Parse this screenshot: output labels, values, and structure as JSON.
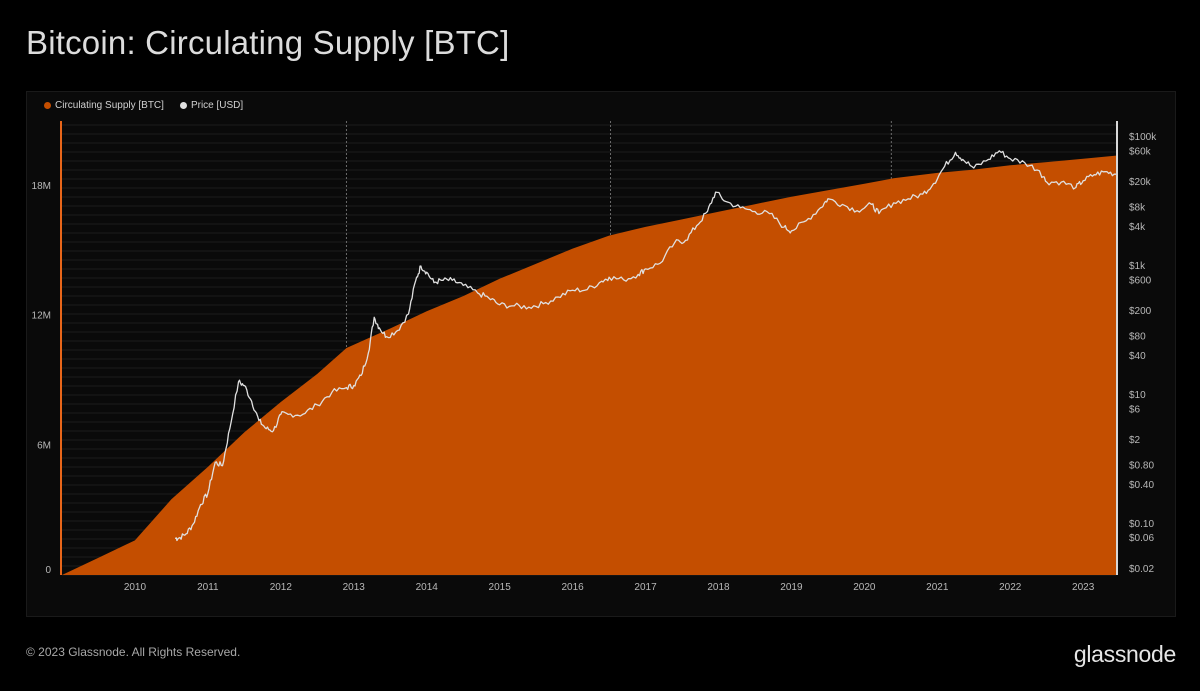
{
  "header": {
    "title": "Bitcoin: Circulating Supply [BTC]"
  },
  "footer": {
    "copyright": "© 2023 Glassnode. All Rights Reserved.",
    "logo_text": "glassnode"
  },
  "colors": {
    "supply": "#c44e00",
    "price": "#e0e0e0",
    "accent_line": "#e8661a",
    "grid": "#1c1c1c"
  },
  "chart_data": {
    "type": "area",
    "title": "Bitcoin: Circulating Supply [BTC]",
    "legend": {
      "placement": "top-left",
      "items": [
        {
          "label": "Circulating Supply [BTC]",
          "color": "#c44e00"
        },
        {
          "label": "Price [USD]",
          "color": "#e0e0e0"
        }
      ]
    },
    "x_ticks": [
      "2010",
      "2011",
      "2012",
      "2013",
      "2014",
      "2015",
      "2016",
      "2017",
      "2018",
      "2019",
      "2020",
      "2021",
      "2022",
      "2023"
    ],
    "xlim": [
      2009.0,
      2023.45
    ],
    "y_left": {
      "ticks": [
        0,
        6000000,
        12000000,
        18000000
      ],
      "tick_labels": [
        "0",
        "6M",
        "12M",
        "18M"
      ],
      "ylim": [
        0,
        21000000
      ]
    },
    "y_right": {
      "scale": "log",
      "ticks": [
        100000,
        60000,
        20000,
        8000,
        4000,
        1000,
        600,
        200,
        80,
        40,
        10,
        6,
        2,
        0.8,
        0.4,
        0.1,
        0.06,
        0.02
      ],
      "tick_labels": [
        "$100k",
        "$60k",
        "$20k",
        "$8k",
        "$4k",
        "$1k",
        "$600",
        "$200",
        "$80",
        "$40",
        "$10",
        "$6",
        "$2",
        "$0.80",
        "$0.40",
        "$0.10",
        "$0.06",
        "$0.02"
      ]
    },
    "halvings": [
      2012.9,
      2016.52,
      2020.37
    ],
    "series": [
      {
        "name": "Circulating Supply [BTC]",
        "axis": "left",
        "type": "area",
        "x": [
          2009.0,
          2009.5,
          2010.0,
          2010.5,
          2011.0,
          2011.5,
          2012.0,
          2012.5,
          2012.9,
          2013.5,
          2014.0,
          2014.5,
          2015.0,
          2015.5,
          2016.0,
          2016.5,
          2017.0,
          2017.5,
          2018.0,
          2018.5,
          2019.0,
          2019.5,
          2020.0,
          2020.4,
          2021.0,
          2021.5,
          2022.0,
          2022.5,
          2023.0,
          2023.45
        ],
        "values": [
          0,
          800000,
          1600000,
          3500000,
          5000000,
          6600000,
          8000000,
          9300000,
          10500000,
          11400000,
          12200000,
          12900000,
          13700000,
          14400000,
          15100000,
          15700000,
          16100000,
          16450000,
          16800000,
          17150000,
          17500000,
          17800000,
          18100000,
          18350000,
          18600000,
          18750000,
          18950000,
          19100000,
          19250000,
          19400000
        ]
      },
      {
        "name": "Price [USD]",
        "axis": "right",
        "type": "line",
        "x": [
          2010.55,
          2010.6,
          2010.7,
          2010.8,
          2010.9,
          2011.0,
          2011.1,
          2011.2,
          2011.3,
          2011.42,
          2011.5,
          2011.6,
          2011.7,
          2011.8,
          2011.9,
          2012.0,
          2012.1,
          2012.3,
          2012.5,
          2012.7,
          2012.9,
          2013.0,
          2013.1,
          2013.2,
          2013.28,
          2013.35,
          2013.45,
          2013.6,
          2013.75,
          2013.85,
          2013.92,
          2014.0,
          2014.1,
          2014.2,
          2014.35,
          2014.5,
          2014.7,
          2014.85,
          2015.0,
          2015.2,
          2015.4,
          2015.6,
          2015.8,
          2016.0,
          2016.2,
          2016.4,
          2016.5,
          2016.7,
          2016.9,
          2017.0,
          2017.2,
          2017.4,
          2017.55,
          2017.7,
          2017.85,
          2017.96,
          2018.1,
          2018.3,
          2018.5,
          2018.7,
          2018.9,
          2019.0,
          2019.2,
          2019.4,
          2019.5,
          2019.7,
          2019.9,
          2020.1,
          2020.2,
          2020.4,
          2020.6,
          2020.8,
          2020.95,
          2021.1,
          2021.25,
          2021.35,
          2021.5,
          2021.7,
          2021.85,
          2022.0,
          2022.2,
          2022.4,
          2022.5,
          2022.7,
          2022.9,
          2023.0,
          2023.15,
          2023.3,
          2023.45
        ],
        "values": [
          0.06,
          0.06,
          0.07,
          0.1,
          0.2,
          0.3,
          0.9,
          0.8,
          3,
          16,
          14,
          8,
          4,
          3,
          2.8,
          5,
          5,
          5,
          7,
          11,
          13,
          14,
          20,
          45,
          160,
          110,
          80,
          100,
          180,
          600,
          1000,
          800,
          550,
          600,
          600,
          500,
          380,
          320,
          250,
          240,
          230,
          260,
          330,
          420,
          430,
          580,
          670,
          610,
          740,
          900,
          1100,
          2300,
          2500,
          4200,
          7000,
          14000,
          10000,
          8000,
          7000,
          6500,
          4000,
          3500,
          5000,
          8000,
          11000,
          9000,
          7200,
          9000,
          6500,
          9500,
          11000,
          13000,
          19000,
          35000,
          58000,
          45000,
          33000,
          45000,
          61000,
          46000,
          40000,
          30000,
          20000,
          20000,
          16500,
          21000,
          26000,
          29000,
          26500
        ]
      }
    ]
  }
}
